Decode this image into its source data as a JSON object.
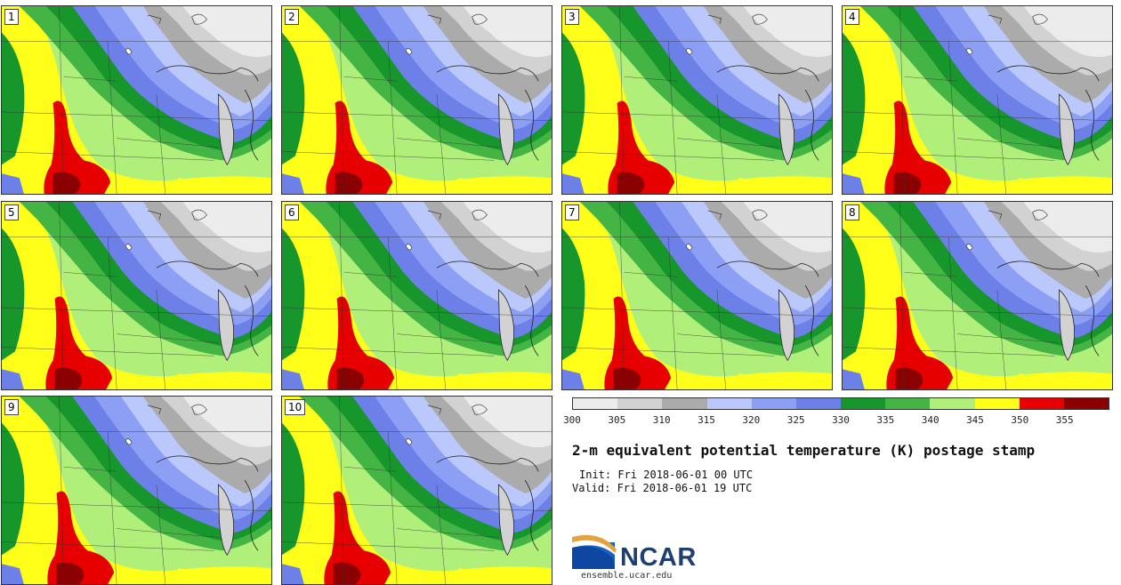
{
  "panels": [
    "1",
    "2",
    "3",
    "4",
    "5",
    "6",
    "7",
    "8",
    "9",
    "10"
  ],
  "colorbar": {
    "ticks": [
      "300",
      "305",
      "310",
      "315",
      "320",
      "325",
      "330",
      "335",
      "340",
      "345",
      "350",
      "355"
    ],
    "colors": [
      "#ececec",
      "#d2d2d2",
      "#ababab",
      "#bac8fb",
      "#8d9ff5",
      "#6c80e8",
      "#16962b",
      "#44b444",
      "#b0f07a",
      "#ffff1a",
      "#e60000",
      "#8b0000"
    ]
  },
  "title": "2-m equivalent potential temperature (K) postage stamp",
  "init_text": "Init: Fri 2018-06-01 00 UTC",
  "valid_text": "Valid: Fri 2018-06-01 19 UTC",
  "logo": {
    "text": "NCAR",
    "brand_color": "#1e3f73",
    "icon": "ncar-arc-logo"
  },
  "website": "ensemble.ucar.edu"
}
